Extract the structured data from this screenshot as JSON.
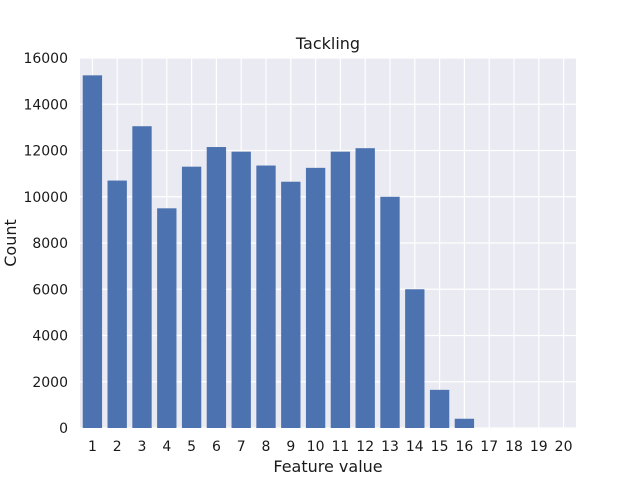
{
  "chart_data": {
    "type": "bar",
    "title": "Tackling",
    "xlabel": "Feature value",
    "ylabel": "Count",
    "categories": [
      "1",
      "2",
      "3",
      "4",
      "5",
      "6",
      "7",
      "8",
      "9",
      "10",
      "11",
      "12",
      "13",
      "14",
      "15",
      "16",
      "17",
      "18",
      "19",
      "20"
    ],
    "values": [
      15250,
      10700,
      13050,
      9500,
      11300,
      12150,
      11950,
      11350,
      10650,
      11250,
      11950,
      12100,
      10000,
      6000,
      1650,
      400,
      0,
      0,
      0,
      0
    ],
    "ylim": [
      0,
      16000
    ],
    "yticks": [
      0,
      2000,
      4000,
      6000,
      8000,
      10000,
      12000,
      14000,
      16000
    ],
    "grid": true,
    "colors": {
      "bar": "#4c72b0",
      "plot_background": "#eaeaf2",
      "grid": "#ffffff"
    }
  }
}
